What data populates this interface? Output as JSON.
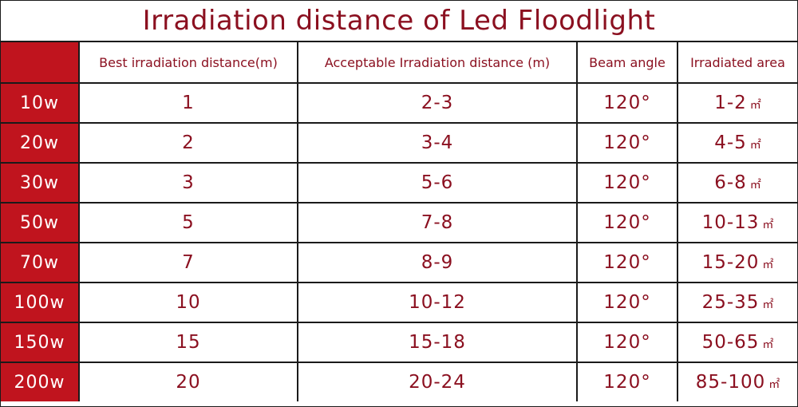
{
  "title": "Irradiation distance of Led Floodlight",
  "columns": [
    "Best irradiation distance(m)",
    "Acceptable Irradiation distance (m)",
    "Beam angle",
    "Irradiated area"
  ],
  "area_unit": "㎡",
  "rows": [
    {
      "power": "10w",
      "best": "1",
      "acceptable": "2-3",
      "beam": "120°",
      "area": "1-2"
    },
    {
      "power": "20w",
      "best": "2",
      "acceptable": "3-4",
      "beam": "120°",
      "area": "4-5"
    },
    {
      "power": "30w",
      "best": "3",
      "acceptable": "5-6",
      "beam": "120°",
      "area": "6-8"
    },
    {
      "power": "50w",
      "best": "5",
      "acceptable": "7-8",
      "beam": "120°",
      "area": "10-13"
    },
    {
      "power": "70w",
      "best": "7",
      "acceptable": "8-9",
      "beam": "120°",
      "area": "15-20"
    },
    {
      "power": "100w",
      "best": "10",
      "acceptable": "10-12",
      "beam": "120°",
      "area": "25-35"
    },
    {
      "power": "150w",
      "best": "15",
      "acceptable": "15-18",
      "beam": "120°",
      "area": "50-65"
    },
    {
      "power": "200w",
      "best": "20",
      "acceptable": "20-24",
      "beam": "120°",
      "area": "85-100"
    }
  ],
  "colors": {
    "accent_red": "#c0141e",
    "text_red": "#8b1020",
    "grid": "#1a1a1a"
  }
}
